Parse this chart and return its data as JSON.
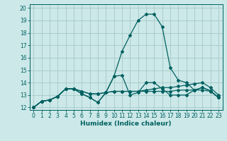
{
  "xlabel": "Humidex (Indice chaleur)",
  "bg_color": "#cce8e8",
  "grid_color": "#aacccc",
  "line_color": "#006060",
  "xlim": [
    -0.5,
    23.5
  ],
  "ylim": [
    11.8,
    20.3
  ],
  "yticks": [
    12,
    13,
    14,
    15,
    16,
    17,
    18,
    19,
    20
  ],
  "xticks": [
    0,
    1,
    2,
    3,
    4,
    5,
    6,
    7,
    8,
    9,
    10,
    11,
    12,
    13,
    14,
    15,
    16,
    17,
    18,
    19,
    20,
    21,
    22,
    23
  ],
  "series": [
    [
      12.0,
      12.5,
      12.6,
      12.9,
      13.5,
      13.5,
      13.1,
      12.8,
      12.4,
      13.2,
      14.5,
      16.5,
      17.8,
      19.0,
      19.5,
      19.5,
      18.5,
      15.2,
      14.2,
      14.0,
      13.4,
      13.6,
      13.35,
      12.8
    ],
    [
      12.0,
      12.5,
      12.6,
      12.9,
      13.5,
      13.5,
      13.1,
      12.8,
      12.4,
      13.2,
      14.5,
      14.6,
      13.0,
      13.2,
      14.0,
      14.0,
      13.5,
      13.0,
      13.0,
      13.0,
      13.4,
      13.6,
      13.35,
      12.8
    ],
    [
      12.0,
      12.5,
      12.6,
      12.9,
      13.5,
      13.5,
      13.3,
      13.1,
      13.1,
      13.2,
      13.3,
      13.3,
      13.3,
      13.3,
      13.4,
      13.5,
      13.6,
      13.6,
      13.7,
      13.8,
      13.9,
      14.0,
      13.6,
      13.0
    ],
    [
      12.0,
      12.5,
      12.6,
      12.9,
      13.5,
      13.5,
      13.3,
      13.1,
      13.1,
      13.2,
      13.3,
      13.3,
      13.3,
      13.3,
      13.3,
      13.3,
      13.3,
      13.3,
      13.4,
      13.4,
      13.4,
      13.4,
      13.3,
      12.8
    ]
  ]
}
